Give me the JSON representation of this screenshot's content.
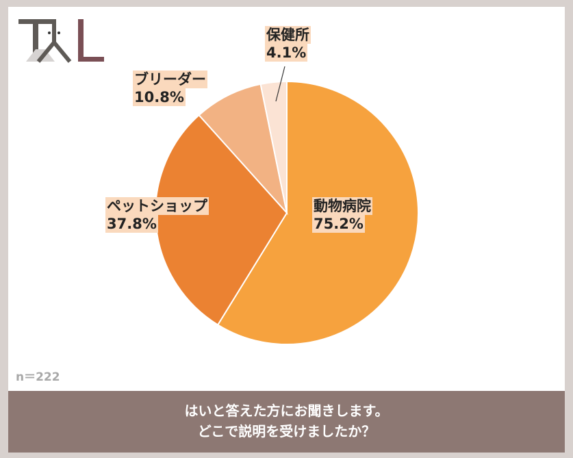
{
  "logo_text": "TAL",
  "sample_size": "n＝222",
  "question": [
    "はいと答えた方にお聞きします。",
    "どこで説明を受けましたか？"
  ],
  "chart_data": {
    "type": "pie",
    "start": "top",
    "direction": "clockwise",
    "categories": [
      "動物病院",
      "ペットショップ",
      "ブリーダー",
      "保健所"
    ],
    "values": [
      75.2,
      37.8,
      10.8,
      4.1
    ],
    "value_labels": [
      "75.2%",
      "37.8%",
      "10.8%",
      "4.1%"
    ],
    "colors": [
      "#f6a23e",
      "#eb8232",
      "#f2b283",
      "#fbe3d4"
    ],
    "label_bg": "#fad9bd"
  }
}
